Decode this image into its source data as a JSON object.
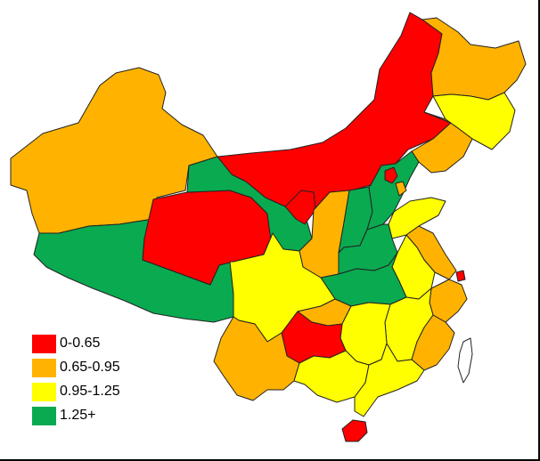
{
  "colors": {
    "c0": "#ff0000",
    "c1": "#ffb300",
    "c2": "#ffff00",
    "c3": "#0aaa50",
    "neutral": "#ffffff"
  },
  "legend": [
    {
      "label": "0-0.65",
      "color_key": "c0"
    },
    {
      "label": "0.65-0.95",
      "color_key": "c1"
    },
    {
      "label": "0.95-1.25",
      "color_key": "c2"
    },
    {
      "label": "1.25+",
      "color_key": "c3"
    }
  ],
  "regions": [
    {
      "id": "heilongjiang",
      "cls": "c1"
    },
    {
      "id": "jilin",
      "cls": "c2"
    },
    {
      "id": "liaoning",
      "cls": "c1"
    },
    {
      "id": "inner-mongolia",
      "cls": "c0"
    },
    {
      "id": "xinjiang",
      "cls": "c1"
    },
    {
      "id": "tibet",
      "cls": "c3"
    },
    {
      "id": "qinghai",
      "cls": "c0"
    },
    {
      "id": "gansu",
      "cls": "c3"
    },
    {
      "id": "ningxia",
      "cls": "c0"
    },
    {
      "id": "shaanxi",
      "cls": "c1"
    },
    {
      "id": "shanxi",
      "cls": "c3"
    },
    {
      "id": "hebei",
      "cls": "c3"
    },
    {
      "id": "beijing",
      "cls": "c0"
    },
    {
      "id": "tianjin",
      "cls": "c1"
    },
    {
      "id": "shandong",
      "cls": "c2"
    },
    {
      "id": "henan",
      "cls": "c3"
    },
    {
      "id": "jiangsu",
      "cls": "c1"
    },
    {
      "id": "anhui",
      "cls": "c2"
    },
    {
      "id": "shanghai",
      "cls": "c0"
    },
    {
      "id": "hubei",
      "cls": "c3"
    },
    {
      "id": "sichuan",
      "cls": "c2"
    },
    {
      "id": "chongqing",
      "cls": "c1"
    },
    {
      "id": "zhejiang",
      "cls": "c1"
    },
    {
      "id": "jiangxi",
      "cls": "c2"
    },
    {
      "id": "hunan",
      "cls": "c2"
    },
    {
      "id": "guizhou",
      "cls": "c0"
    },
    {
      "id": "yunnan",
      "cls": "c1"
    },
    {
      "id": "guangxi",
      "cls": "c2"
    },
    {
      "id": "guangdong",
      "cls": "c2"
    },
    {
      "id": "fujian",
      "cls": "c1"
    },
    {
      "id": "hainan",
      "cls": "c0"
    },
    {
      "id": "taiwan",
      "cls": "neutral"
    }
  ]
}
